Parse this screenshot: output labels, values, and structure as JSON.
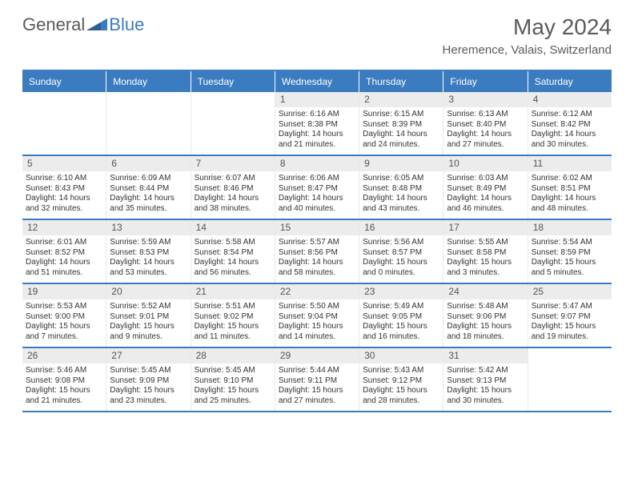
{
  "brand": {
    "general": "General",
    "blue": "Blue"
  },
  "title": "May 2024",
  "location": "Heremence, Valais, Switzerland",
  "day_headers": [
    "Sunday",
    "Monday",
    "Tuesday",
    "Wednesday",
    "Thursday",
    "Friday",
    "Saturday"
  ],
  "colors": {
    "header_blue": "#3b7bbf",
    "text_gray": "#5a5a5a",
    "band_gray": "#ececec",
    "border_blue": "#3b7bbf"
  },
  "weeks": [
    [
      {
        "blank": true
      },
      {
        "blank": true
      },
      {
        "blank": true
      },
      {
        "day": "1",
        "sunrise": "Sunrise: 6:16 AM",
        "sunset": "Sunset: 8:38 PM",
        "daylight1": "Daylight: 14 hours",
        "daylight2": "and 21 minutes."
      },
      {
        "day": "2",
        "sunrise": "Sunrise: 6:15 AM",
        "sunset": "Sunset: 8:39 PM",
        "daylight1": "Daylight: 14 hours",
        "daylight2": "and 24 minutes."
      },
      {
        "day": "3",
        "sunrise": "Sunrise: 6:13 AM",
        "sunset": "Sunset: 8:40 PM",
        "daylight1": "Daylight: 14 hours",
        "daylight2": "and 27 minutes."
      },
      {
        "day": "4",
        "sunrise": "Sunrise: 6:12 AM",
        "sunset": "Sunset: 8:42 PM",
        "daylight1": "Daylight: 14 hours",
        "daylight2": "and 30 minutes."
      }
    ],
    [
      {
        "day": "5",
        "sunrise": "Sunrise: 6:10 AM",
        "sunset": "Sunset: 8:43 PM",
        "daylight1": "Daylight: 14 hours",
        "daylight2": "and 32 minutes."
      },
      {
        "day": "6",
        "sunrise": "Sunrise: 6:09 AM",
        "sunset": "Sunset: 8:44 PM",
        "daylight1": "Daylight: 14 hours",
        "daylight2": "and 35 minutes."
      },
      {
        "day": "7",
        "sunrise": "Sunrise: 6:07 AM",
        "sunset": "Sunset: 8:46 PM",
        "daylight1": "Daylight: 14 hours",
        "daylight2": "and 38 minutes."
      },
      {
        "day": "8",
        "sunrise": "Sunrise: 6:06 AM",
        "sunset": "Sunset: 8:47 PM",
        "daylight1": "Daylight: 14 hours",
        "daylight2": "and 40 minutes."
      },
      {
        "day": "9",
        "sunrise": "Sunrise: 6:05 AM",
        "sunset": "Sunset: 8:48 PM",
        "daylight1": "Daylight: 14 hours",
        "daylight2": "and 43 minutes."
      },
      {
        "day": "10",
        "sunrise": "Sunrise: 6:03 AM",
        "sunset": "Sunset: 8:49 PM",
        "daylight1": "Daylight: 14 hours",
        "daylight2": "and 46 minutes."
      },
      {
        "day": "11",
        "sunrise": "Sunrise: 6:02 AM",
        "sunset": "Sunset: 8:51 PM",
        "daylight1": "Daylight: 14 hours",
        "daylight2": "and 48 minutes."
      }
    ],
    [
      {
        "day": "12",
        "sunrise": "Sunrise: 6:01 AM",
        "sunset": "Sunset: 8:52 PM",
        "daylight1": "Daylight: 14 hours",
        "daylight2": "and 51 minutes."
      },
      {
        "day": "13",
        "sunrise": "Sunrise: 5:59 AM",
        "sunset": "Sunset: 8:53 PM",
        "daylight1": "Daylight: 14 hours",
        "daylight2": "and 53 minutes."
      },
      {
        "day": "14",
        "sunrise": "Sunrise: 5:58 AM",
        "sunset": "Sunset: 8:54 PM",
        "daylight1": "Daylight: 14 hours",
        "daylight2": "and 56 minutes."
      },
      {
        "day": "15",
        "sunrise": "Sunrise: 5:57 AM",
        "sunset": "Sunset: 8:56 PM",
        "daylight1": "Daylight: 14 hours",
        "daylight2": "and 58 minutes."
      },
      {
        "day": "16",
        "sunrise": "Sunrise: 5:56 AM",
        "sunset": "Sunset: 8:57 PM",
        "daylight1": "Daylight: 15 hours",
        "daylight2": "and 0 minutes."
      },
      {
        "day": "17",
        "sunrise": "Sunrise: 5:55 AM",
        "sunset": "Sunset: 8:58 PM",
        "daylight1": "Daylight: 15 hours",
        "daylight2": "and 3 minutes."
      },
      {
        "day": "18",
        "sunrise": "Sunrise: 5:54 AM",
        "sunset": "Sunset: 8:59 PM",
        "daylight1": "Daylight: 15 hours",
        "daylight2": "and 5 minutes."
      }
    ],
    [
      {
        "day": "19",
        "sunrise": "Sunrise: 5:53 AM",
        "sunset": "Sunset: 9:00 PM",
        "daylight1": "Daylight: 15 hours",
        "daylight2": "and 7 minutes."
      },
      {
        "day": "20",
        "sunrise": "Sunrise: 5:52 AM",
        "sunset": "Sunset: 9:01 PM",
        "daylight1": "Daylight: 15 hours",
        "daylight2": "and 9 minutes."
      },
      {
        "day": "21",
        "sunrise": "Sunrise: 5:51 AM",
        "sunset": "Sunset: 9:02 PM",
        "daylight1": "Daylight: 15 hours",
        "daylight2": "and 11 minutes."
      },
      {
        "day": "22",
        "sunrise": "Sunrise: 5:50 AM",
        "sunset": "Sunset: 9:04 PM",
        "daylight1": "Daylight: 15 hours",
        "daylight2": "and 14 minutes."
      },
      {
        "day": "23",
        "sunrise": "Sunrise: 5:49 AM",
        "sunset": "Sunset: 9:05 PM",
        "daylight1": "Daylight: 15 hours",
        "daylight2": "and 16 minutes."
      },
      {
        "day": "24",
        "sunrise": "Sunrise: 5:48 AM",
        "sunset": "Sunset: 9:06 PM",
        "daylight1": "Daylight: 15 hours",
        "daylight2": "and 18 minutes."
      },
      {
        "day": "25",
        "sunrise": "Sunrise: 5:47 AM",
        "sunset": "Sunset: 9:07 PM",
        "daylight1": "Daylight: 15 hours",
        "daylight2": "and 19 minutes."
      }
    ],
    [
      {
        "day": "26",
        "sunrise": "Sunrise: 5:46 AM",
        "sunset": "Sunset: 9:08 PM",
        "daylight1": "Daylight: 15 hours",
        "daylight2": "and 21 minutes."
      },
      {
        "day": "27",
        "sunrise": "Sunrise: 5:45 AM",
        "sunset": "Sunset: 9:09 PM",
        "daylight1": "Daylight: 15 hours",
        "daylight2": "and 23 minutes."
      },
      {
        "day": "28",
        "sunrise": "Sunrise: 5:45 AM",
        "sunset": "Sunset: 9:10 PM",
        "daylight1": "Daylight: 15 hours",
        "daylight2": "and 25 minutes."
      },
      {
        "day": "29",
        "sunrise": "Sunrise: 5:44 AM",
        "sunset": "Sunset: 9:11 PM",
        "daylight1": "Daylight: 15 hours",
        "daylight2": "and 27 minutes."
      },
      {
        "day": "30",
        "sunrise": "Sunrise: 5:43 AM",
        "sunset": "Sunset: 9:12 PM",
        "daylight1": "Daylight: 15 hours",
        "daylight2": "and 28 minutes."
      },
      {
        "day": "31",
        "sunrise": "Sunrise: 5:42 AM",
        "sunset": "Sunset: 9:13 PM",
        "daylight1": "Daylight: 15 hours",
        "daylight2": "and 30 minutes."
      },
      {
        "blank": true
      }
    ]
  ]
}
